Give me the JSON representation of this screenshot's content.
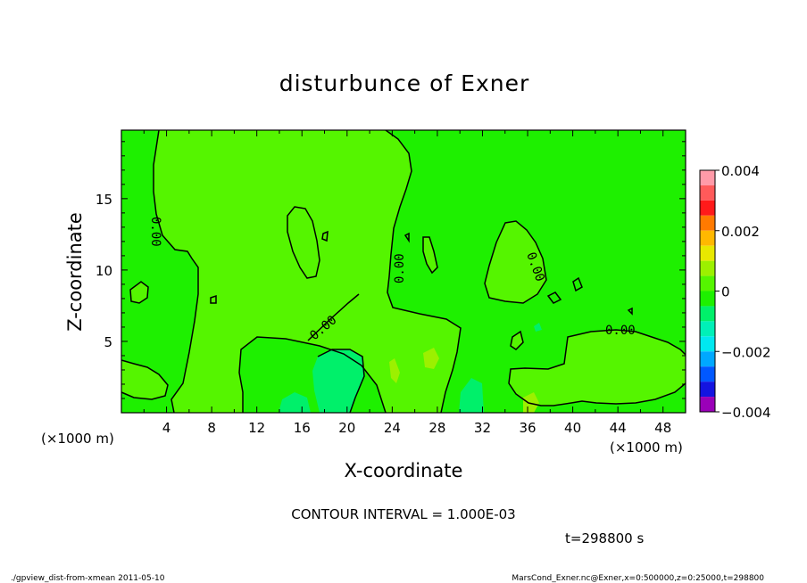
{
  "chart_data": {
    "type": "heatmap",
    "title": "disturbunce of Exner",
    "xlabel": "X-coordinate",
    "ylabel": "Z-coordinate",
    "x_unit": "(×1000 m)",
    "y_unit": "(×1000 m)",
    "xlim": [
      0,
      50
    ],
    "ylim": [
      0,
      19.8
    ],
    "x_ticks": [
      4,
      8,
      12,
      16,
      20,
      24,
      28,
      32,
      36,
      40,
      44,
      48
    ],
    "y_ticks": [
      5,
      10,
      15
    ],
    "grid": false,
    "contour_interval_label": "CONTOUR INTERVAL = 1.000E-03",
    "contour_labels": [
      "0.00",
      "0.00",
      "0.00",
      "0.00",
      "0.00"
    ],
    "colorbar": {
      "range": [
        -0.004,
        0.004
      ],
      "tick_labels": [
        "0.004",
        "0.002",
        "0",
        "−0.002",
        "−0.004"
      ],
      "tick_values": [
        0.004,
        0.002,
        0,
        -0.002,
        -0.004
      ],
      "levels": [
        {
          "lo": 0.0035,
          "hi": 0.004,
          "color": "#ff9aa8"
        },
        {
          "lo": 0.003,
          "hi": 0.0035,
          "color": "#ff5a5a"
        },
        {
          "lo": 0.0025,
          "hi": 0.003,
          "color": "#ff1a1a"
        },
        {
          "lo": 0.002,
          "hi": 0.0025,
          "color": "#ff7a00"
        },
        {
          "lo": 0.0015,
          "hi": 0.002,
          "color": "#ffb800"
        },
        {
          "lo": 0.001,
          "hi": 0.0015,
          "color": "#e8e800"
        },
        {
          "lo": 0.0005,
          "hi": 0.001,
          "color": "#9cf000"
        },
        {
          "lo": 0.0,
          "hi": 0.0005,
          "color": "#55f500"
        },
        {
          "lo": -0.0005,
          "hi": 0.0,
          "color": "#1ef000"
        },
        {
          "lo": -0.001,
          "hi": -0.0005,
          "color": "#00f06a"
        },
        {
          "lo": -0.0015,
          "hi": -0.001,
          "color": "#00f0b8"
        },
        {
          "lo": -0.002,
          "hi": -0.0015,
          "color": "#00e8f0"
        },
        {
          "lo": -0.0025,
          "hi": -0.002,
          "color": "#00a8ff"
        },
        {
          "lo": -0.003,
          "hi": -0.0025,
          "color": "#0058ff"
        },
        {
          "lo": -0.0035,
          "hi": -0.003,
          "color": "#1414e0"
        },
        {
          "lo": -0.004,
          "hi": -0.0035,
          "color": "#9a00b8"
        }
      ]
    }
  },
  "annotations": {
    "time_label": "t=298800 s",
    "footer_left": "./gpview_dist-from-xmean  2011-05-10",
    "footer_right": "MarsCond_Exner.nc@Exner,x=0:500000,z=0:25000,t=298800"
  }
}
